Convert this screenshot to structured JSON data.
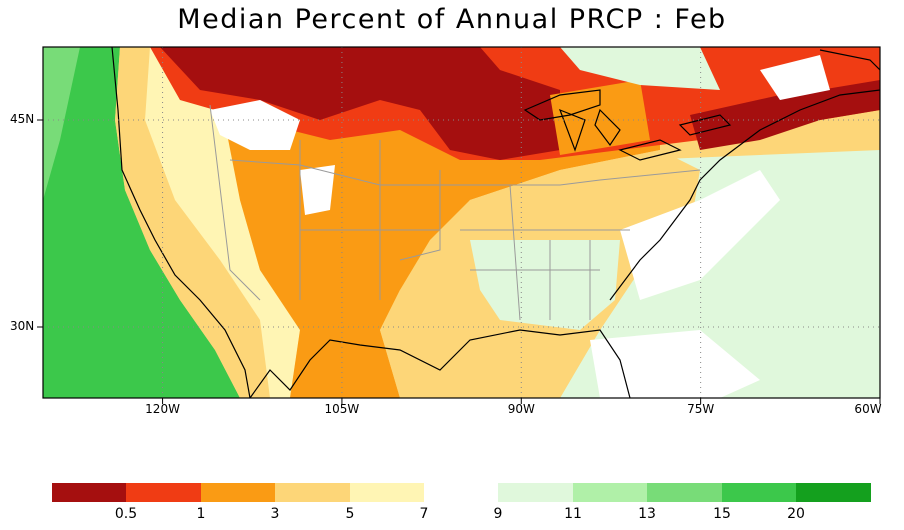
{
  "title": "Median Percent of Annual PRCP :   Feb",
  "latitude_labels": [
    {
      "label": "45N",
      "lat": 45
    },
    {
      "label": "30N",
      "lat": 30
    }
  ],
  "longitude_labels": [
    {
      "label": "120W",
      "lon": -120
    },
    {
      "label": "105W",
      "lon": -105
    },
    {
      "label": "90W",
      "lon": -90
    },
    {
      "label": "75W",
      "lon": -75
    },
    {
      "label": "60W",
      "lon": -60
    }
  ],
  "colorbar": {
    "colors": [
      "#a50f0f",
      "#f03c14",
      "#fa9b14",
      "#fdd678",
      "#fff5b4",
      "#ffffff",
      "#e0f8dc",
      "#b0f0a8",
      "#78dc78",
      "#3cc84b",
      "#14a01e"
    ],
    "ticks": [
      "0.5",
      "1",
      "3",
      "5",
      "7",
      "9",
      "11",
      "13",
      "15",
      "20"
    ]
  },
  "map_colors": {
    "ocean_west": "#3cc84b",
    "ocean_far": "#78dc78",
    "atlantic": "#e0f8dc",
    "southeast_green": "#e0f8dc",
    "plains_orange": "#fa9b14",
    "north_dark": "#a50f0f",
    "north_red": "#f03c14",
    "yellow": "#fdd678",
    "pale": "#fff5b4",
    "white": "#ffffff",
    "grid": "#999999",
    "coast": "#000000",
    "border": "#9a9a9a"
  }
}
